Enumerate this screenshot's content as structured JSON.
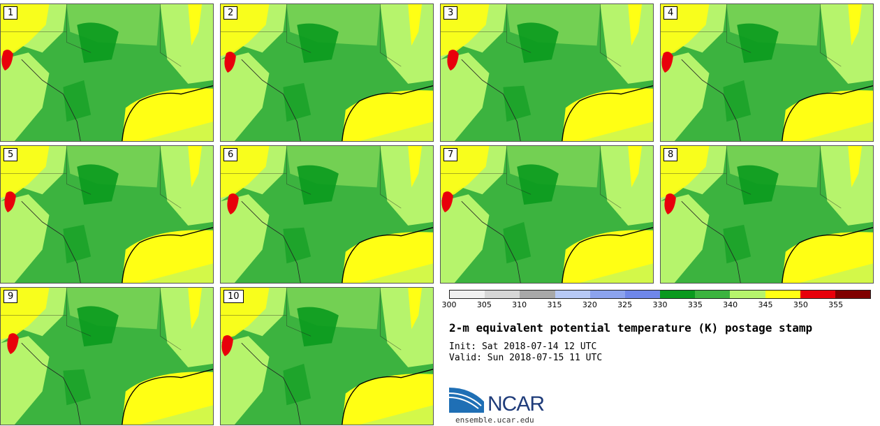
{
  "title": "2-m equivalent potential temperature (K) postage stamp",
  "init_time": "Init: Sat 2018-07-14 12 UTC",
  "valid_time": "Valid: Sun 2018-07-15 11 UTC",
  "logo_text": "NCAR",
  "website": "ensemble.ucar.edu",
  "members": [
    "1",
    "2",
    "3",
    "4",
    "5",
    "6",
    "7",
    "8",
    "9",
    "10"
  ],
  "colorbar": {
    "tick_labels": [
      "300",
      "305",
      "310",
      "315",
      "320",
      "325",
      "330",
      "335",
      "340",
      "345",
      "350",
      "355"
    ],
    "colors": [
      "#f0f0f0",
      "#d6d6d6",
      "#a8a8a8",
      "#b7c9f5",
      "#8ca3ee",
      "#6f87ea",
      "#0a9a1e",
      "#3cb33f",
      "#b6f46c",
      "#ffff14",
      "#e8000b",
      "#800000"
    ]
  },
  "map_colors": {
    "k330": "#0a9a1e",
    "k335": "#3cb33f",
    "k340": "#b6f46c",
    "k345": "#ffff14",
    "k350": "#e8000b",
    "k325": "#6f87ea",
    "border": "#222222",
    "coast": "#000000"
  }
}
